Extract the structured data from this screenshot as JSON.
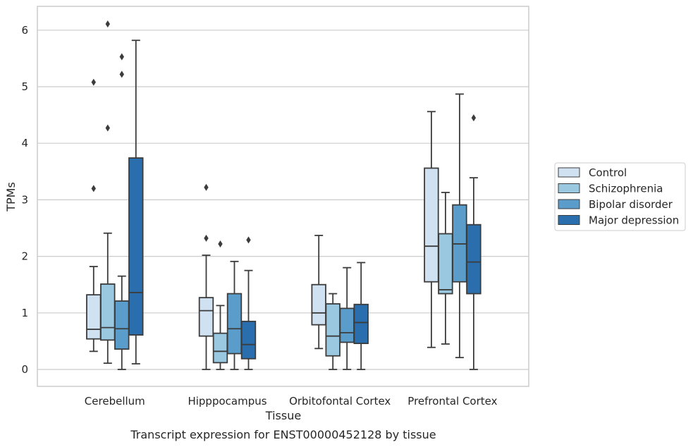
{
  "caption": "Transcript expression for ENST00000452128 by tissue",
  "chart_data": {
    "type": "box",
    "title": "",
    "xlabel": "Tissue",
    "ylabel": "TPMs",
    "ylim": [
      -0.3,
      6.4
    ],
    "yticks": [
      0,
      1,
      2,
      3,
      4,
      5,
      6
    ],
    "grid": true,
    "legend_position": "right",
    "categories": [
      "Cerebellum",
      "Hipppocampus",
      "Orbitofontal Cortex",
      "Prefrontal Cortex"
    ],
    "series": [
      {
        "name": "Control",
        "color": "#d0e2f2",
        "boxes": [
          {
            "whisker_low": 0.32,
            "q1": 0.54,
            "median": 0.71,
            "q3": 1.32,
            "whisker_high": 1.82,
            "outliers": [
              3.2,
              5.08
            ]
          },
          {
            "whisker_low": 0.0,
            "q1": 0.59,
            "median": 1.04,
            "q3": 1.27,
            "whisker_high": 2.02,
            "outliers": [
              2.32,
              3.22
            ]
          },
          {
            "whisker_low": 0.37,
            "q1": 0.79,
            "median": 1.0,
            "q3": 1.5,
            "whisker_high": 2.37,
            "outliers": []
          },
          {
            "whisker_low": 0.39,
            "q1": 1.55,
            "median": 2.18,
            "q3": 3.56,
            "whisker_high": 4.56,
            "outliers": []
          }
        ]
      },
      {
        "name": "Schizophrenia",
        "color": "#9ac8e0",
        "boxes": [
          {
            "whisker_low": 0.11,
            "q1": 0.52,
            "median": 0.74,
            "q3": 1.51,
            "whisker_high": 2.41,
            "outliers": [
              4.27,
              6.11
            ]
          },
          {
            "whisker_low": 0.0,
            "q1": 0.12,
            "median": 0.32,
            "q3": 0.64,
            "whisker_high": 1.13,
            "outliers": [
              2.22
            ]
          },
          {
            "whisker_low": 0.0,
            "q1": 0.24,
            "median": 0.59,
            "q3": 1.16,
            "whisker_high": 1.34,
            "outliers": []
          },
          {
            "whisker_low": 0.45,
            "q1": 1.34,
            "median": 1.41,
            "q3": 2.4,
            "whisker_high": 3.13,
            "outliers": []
          }
        ]
      },
      {
        "name": "Bipolar disorder",
        "color": "#5a9dcb",
        "boxes": [
          {
            "whisker_low": 0.0,
            "q1": 0.36,
            "median": 0.72,
            "q3": 1.21,
            "whisker_high": 1.65,
            "outliers": [
              5.22,
              5.53
            ]
          },
          {
            "whisker_low": 0.0,
            "q1": 0.28,
            "median": 0.72,
            "q3": 1.34,
            "whisker_high": 1.91,
            "outliers": []
          },
          {
            "whisker_low": 0.0,
            "q1": 0.48,
            "median": 0.65,
            "q3": 1.08,
            "whisker_high": 1.8,
            "outliers": []
          },
          {
            "whisker_low": 0.21,
            "q1": 1.55,
            "median": 2.22,
            "q3": 2.91,
            "whisker_high": 4.87,
            "outliers": []
          }
        ]
      },
      {
        "name": "Major depression",
        "color": "#2a6ead",
        "boxes": [
          {
            "whisker_low": 0.1,
            "q1": 0.61,
            "median": 1.36,
            "q3": 3.74,
            "whisker_high": 5.82,
            "outliers": []
          },
          {
            "whisker_low": 0.0,
            "q1": 0.19,
            "median": 0.44,
            "q3": 0.85,
            "whisker_high": 1.75,
            "outliers": [
              2.29
            ]
          },
          {
            "whisker_low": 0.0,
            "q1": 0.46,
            "median": 0.83,
            "q3": 1.15,
            "whisker_high": 1.89,
            "outliers": []
          },
          {
            "whisker_low": 0.0,
            "q1": 1.34,
            "median": 1.9,
            "q3": 2.56,
            "whisker_high": 3.39,
            "outliers": [
              4.45
            ]
          }
        ]
      }
    ]
  }
}
